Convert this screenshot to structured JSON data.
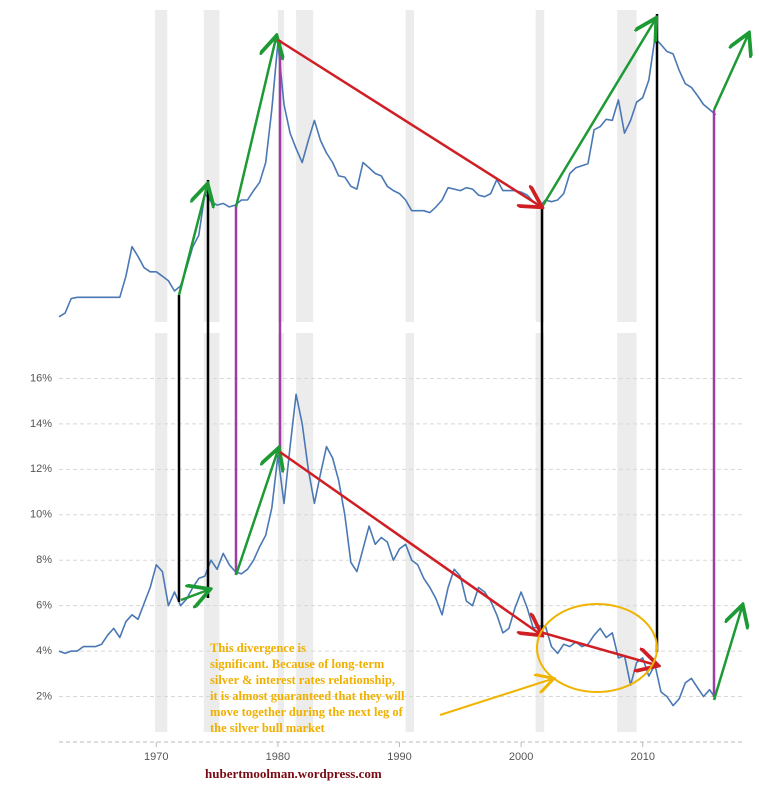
{
  "chart_data": [
    {
      "type": "line",
      "yscale": "log",
      "color": "#4a78b5",
      "xlim": [
        1962,
        2018
      ],
      "ylim": [
        0.82,
        55
      ],
      "x": [
        1962,
        1962.5,
        1963,
        1963.5,
        1964,
        1964.5,
        1965,
        1965.5,
        1966,
        1966.5,
        1967,
        1967.5,
        1968,
        1968.5,
        1969,
        1969.5,
        1970,
        1970.5,
        1971,
        1971.5,
        1972,
        1972.5,
        1973,
        1973.5,
        1974,
        1974.5,
        1975,
        1975.5,
        1976,
        1976.5,
        1977,
        1977.5,
        1978,
        1978.5,
        1979,
        1979.5,
        1980,
        1980.5,
        1981,
        1981.5,
        1982,
        1982.5,
        1983,
        1983.5,
        1984,
        1984.5,
        1985,
        1985.5,
        1986,
        1986.5,
        1987,
        1987.5,
        1988,
        1988.5,
        1989,
        1989.5,
        1990,
        1990.5,
        1991,
        1991.5,
        1992,
        1992.5,
        1993,
        1993.5,
        1994,
        1994.5,
        1995,
        1995.5,
        1996,
        1996.5,
        1997,
        1997.5,
        1998,
        1998.5,
        1999,
        1999.5,
        2000,
        2000.5,
        2001,
        2001.5,
        2002,
        2002.5,
        2003,
        2003.5,
        2004,
        2004.5,
        2005,
        2005.5,
        2006,
        2006.5,
        2007,
        2007.5,
        2008,
        2008.5,
        2009,
        2009.5,
        2010,
        2010.5,
        2011,
        2011.5,
        2012,
        2012.5,
        2013,
        2013.5,
        2014,
        2014.5,
        2015,
        2015.5,
        2016
      ],
      "values": [
        1.0,
        1.05,
        1.27,
        1.29,
        1.29,
        1.29,
        1.29,
        1.29,
        1.29,
        1.29,
        1.29,
        1.7,
        2.5,
        2.2,
        1.9,
        1.8,
        1.8,
        1.7,
        1.6,
        1.4,
        1.5,
        1.9,
        2.5,
        2.9,
        5.0,
        4.5,
        4.3,
        4.4,
        4.2,
        4.3,
        4.6,
        4.6,
        5.2,
        5.8,
        7.5,
        15,
        36,
        16,
        11,
        9,
        7.5,
        10,
        13,
        10,
        8.5,
        7.5,
        6.3,
        6.2,
        5.5,
        5.3,
        7.5,
        7.0,
        6.5,
        6.3,
        5.5,
        5.2,
        5.0,
        4.6,
        4.0,
        4.0,
        4.0,
        3.9,
        4.2,
        4.6,
        5.4,
        5.3,
        5.2,
        5.4,
        5.3,
        4.9,
        4.8,
        5.0,
        6.0,
        5.2,
        5.2,
        5.2,
        5.1,
        4.9,
        4.5,
        4.2,
        4.6,
        4.5,
        4.6,
        5.0,
        6.5,
        7.0,
        7.2,
        7.4,
        11.5,
        12.0,
        13.2,
        13.0,
        17,
        11,
        13,
        16.5,
        17.5,
        22,
        38,
        35,
        32,
        31,
        25,
        21,
        20,
        18,
        16,
        15,
        14
      ]
    },
    {
      "type": "line",
      "color": "#4a78b5",
      "xlim": [
        1962,
        2018
      ],
      "ylim": [
        0,
        18
      ],
      "grid": true,
      "xticks": [
        1970,
        1980,
        1990,
        2000,
        2010
      ],
      "yticks": [
        {
          "value": 2,
          "label": "2%"
        },
        {
          "value": 4,
          "label": "4%"
        },
        {
          "value": 6,
          "label": "6%"
        },
        {
          "value": 8,
          "label": "8%"
        },
        {
          "value": 10,
          "label": "10%"
        },
        {
          "value": 12,
          "label": "12%"
        },
        {
          "value": 14,
          "label": "14%"
        },
        {
          "value": 16,
          "label": "16%"
        }
      ],
      "recessions": [
        [
          1969.9,
          1970.9
        ],
        [
          1973.9,
          1975.2
        ],
        [
          1980.0,
          1980.5
        ],
        [
          1981.5,
          1982.9
        ],
        [
          1990.5,
          1991.2
        ],
        [
          2001.2,
          2001.9
        ],
        [
          2007.9,
          2009.5
        ]
      ],
      "x": [
        1962,
        1962.5,
        1963,
        1963.5,
        1964,
        1964.5,
        1965,
        1965.5,
        1966,
        1966.5,
        1967,
        1967.5,
        1968,
        1968.5,
        1969,
        1969.5,
        1970,
        1970.5,
        1971,
        1971.5,
        1972,
        1972.5,
        1973,
        1973.5,
        1974,
        1974.5,
        1975,
        1975.5,
        1976,
        1976.5,
        1977,
        1977.5,
        1978,
        1978.5,
        1979,
        1979.5,
        1980,
        1980.5,
        1981,
        1981.5,
        1982,
        1982.5,
        1983,
        1983.5,
        1984,
        1984.5,
        1985,
        1985.5,
        1986,
        1986.5,
        1987,
        1987.5,
        1988,
        1988.5,
        1989,
        1989.5,
        1990,
        1990.5,
        1991,
        1991.5,
        1992,
        1992.5,
        1993,
        1993.5,
        1994,
        1994.5,
        1995,
        1995.5,
        1996,
        1996.5,
        1997,
        1997.5,
        1998,
        1998.5,
        1999,
        1999.5,
        2000,
        2000.5,
        2001,
        2001.5,
        2002,
        2002.5,
        2003,
        2003.5,
        2004,
        2004.5,
        2005,
        2005.5,
        2006,
        2006.5,
        2007,
        2007.5,
        2008,
        2008.5,
        2009,
        2009.5,
        2010,
        2010.5,
        2011,
        2011.5,
        2012,
        2012.5,
        2013,
        2013.5,
        2014,
        2014.5,
        2015,
        2015.5,
        2016
      ],
      "values": [
        4.0,
        3.9,
        4.0,
        4.0,
        4.2,
        4.2,
        4.2,
        4.3,
        4.7,
        5.0,
        4.6,
        5.3,
        5.6,
        5.4,
        6.1,
        6.8,
        7.8,
        7.5,
        6.0,
        6.6,
        6.0,
        6.3,
        6.8,
        7.2,
        7.3,
        8.0,
        7.6,
        8.3,
        7.8,
        7.5,
        7.4,
        7.6,
        8.0,
        8.6,
        9.1,
        10.3,
        12.6,
        10.5,
        13.0,
        15.3,
        14.0,
        12.0,
        10.5,
        11.8,
        13.0,
        12.5,
        11.5,
        10.0,
        7.9,
        7.5,
        8.5,
        9.5,
        8.7,
        9.0,
        8.8,
        8.0,
        8.5,
        8.7,
        8.0,
        7.8,
        7.2,
        6.8,
        6.3,
        5.6,
        6.8,
        7.6,
        7.3,
        6.2,
        6.0,
        6.8,
        6.6,
        6.2,
        5.6,
        4.8,
        5.0,
        5.9,
        6.6,
        5.9,
        5.0,
        5.1,
        5.1,
        4.2,
        3.9,
        4.3,
        4.2,
        4.4,
        4.2,
        4.3,
        4.7,
        5.0,
        4.6,
        4.8,
        3.7,
        3.8,
        2.5,
        3.5,
        3.7,
        2.9,
        3.4,
        2.2,
        2.0,
        1.6,
        1.9,
        2.6,
        2.8,
        2.4,
        2.0,
        2.3,
        1.9
      ],
      "annotation": [
        "This divergence is",
        "significant. Because of long-term",
        "silver & interest rates relationship,",
        "it is almost guaranteed that they will",
        "move together during the next leg of",
        "the silver bull market"
      ]
    }
  ],
  "source": "hubertmoolman.wordpress.com"
}
